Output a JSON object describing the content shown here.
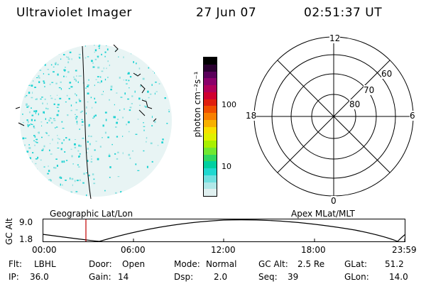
{
  "header": {
    "instrument": "Ultraviolet Imager",
    "date": "27 Jun 07",
    "time": "02:51:37 UT"
  },
  "colorbar": {
    "label": "photon cm⁻²s⁻¹",
    "ticks": [
      "100",
      "10"
    ],
    "colors": [
      "#000000",
      "#2a0030",
      "#5a005a",
      "#8a006a",
      "#b0005a",
      "#d00030",
      "#e02010",
      "#f05000",
      "#f88000",
      "#f8b000",
      "#f8e000",
      "#e0f000",
      "#a8f000",
      "#70e830",
      "#30d860",
      "#00d0a0",
      "#20d8d0",
      "#70e0e0",
      "#b0e8e8",
      "#e0f0f0"
    ]
  },
  "left_globe": {
    "label": "Geographic Lat/Lon",
    "speckle_color": "#1ed2d2",
    "base_color": "#e8f4f4"
  },
  "polar_plot": {
    "label": "Apex MLat/MLT",
    "mlt_labels": {
      "top": "12",
      "bottom": "0",
      "left": "18",
      "right": "6"
    },
    "lat_labels": [
      "60",
      "70",
      "80"
    ]
  },
  "altitude_plot": {
    "ylabel": "GC Alt",
    "yticks": [
      "9.0",
      "1.8"
    ],
    "xticks": [
      "00:00",
      "06:00",
      "12:00",
      "18:00",
      "23:59"
    ],
    "current_time_color": "#c00000"
  },
  "status": {
    "row1": [
      {
        "key": "Flt:",
        "val": "LBHL"
      },
      {
        "key": "Door:",
        "val": "Open"
      },
      {
        "key": "Mode:",
        "val": "Normal"
      },
      {
        "key": "GC Alt:",
        "val": "2.5 Re"
      },
      {
        "key": "GLat:",
        "val": "51.2"
      }
    ],
    "row2": [
      {
        "key": "IP:",
        "val": "36.0"
      },
      {
        "key": "Gain:",
        "val": "14"
      },
      {
        "key": "Dsp:",
        "val": "2.0"
      },
      {
        "key": "Seq:",
        "val": "39"
      },
      {
        "key": "GLon:",
        "val": "14.0"
      }
    ]
  }
}
